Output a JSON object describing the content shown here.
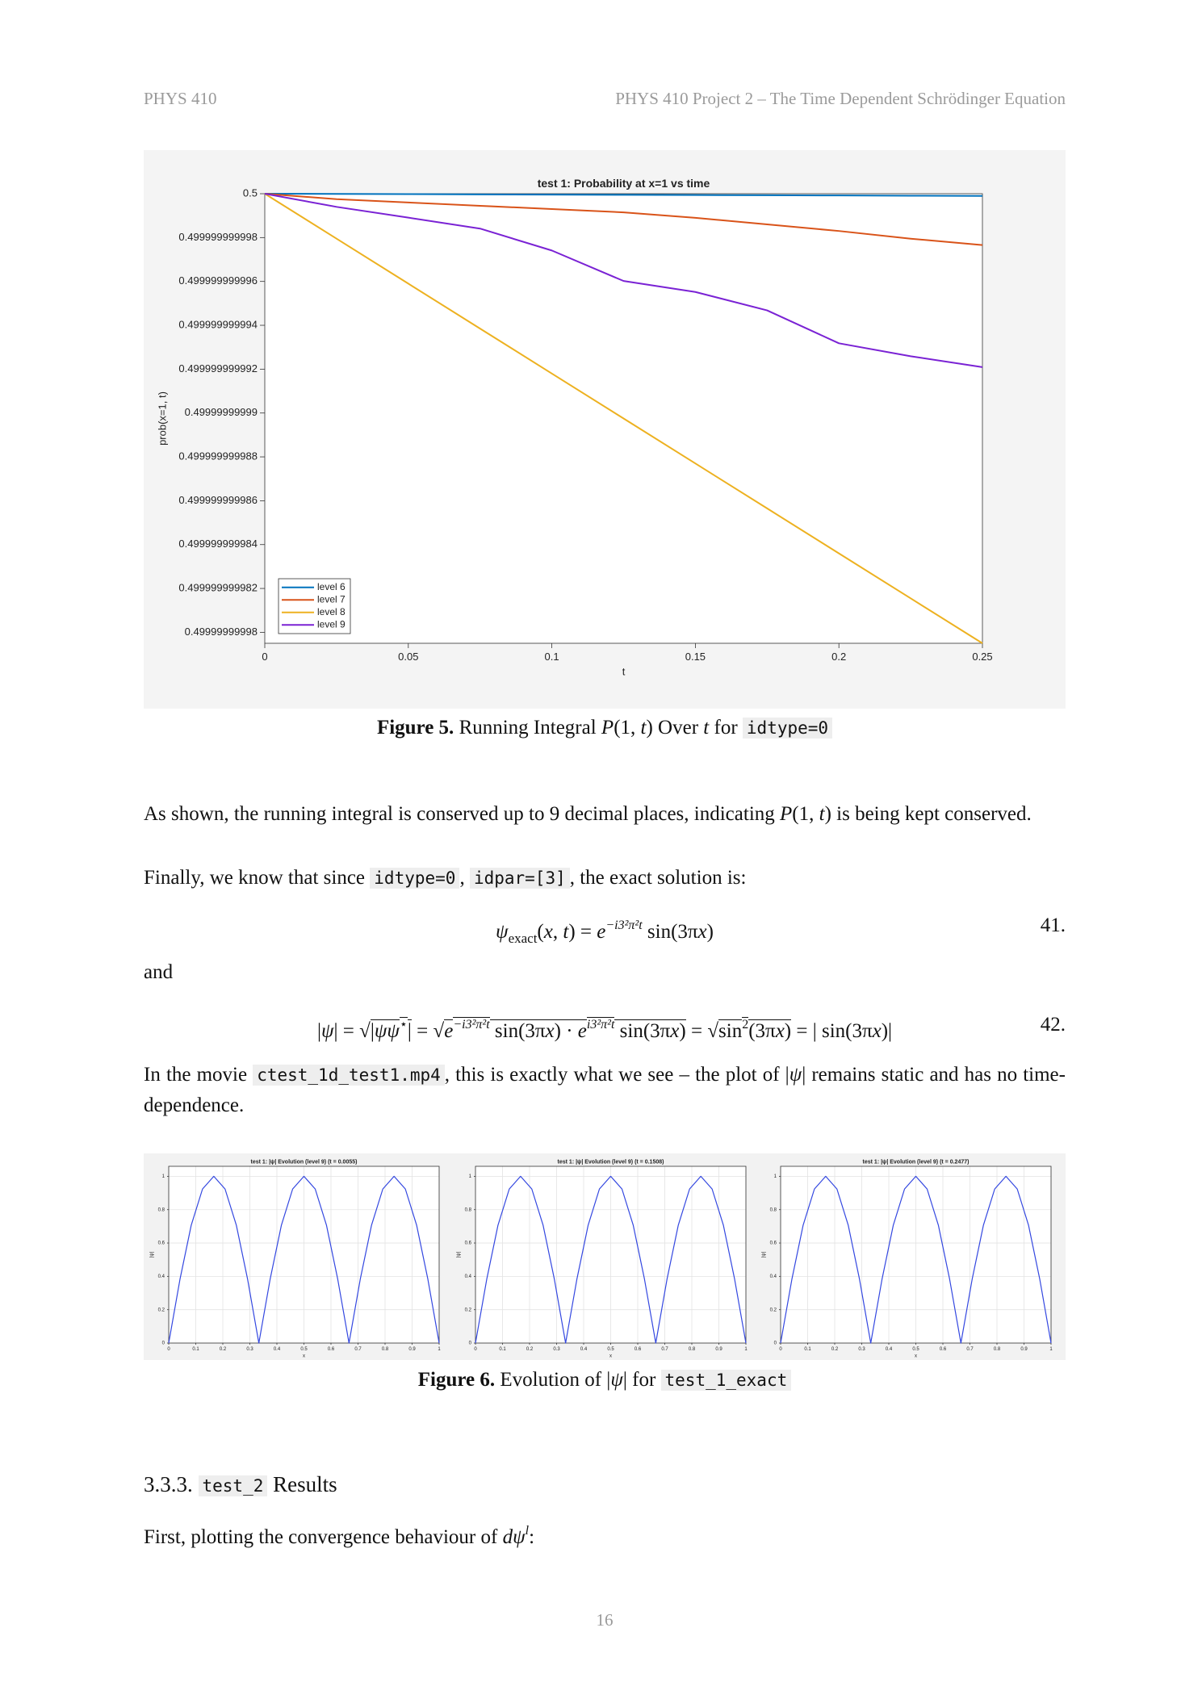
{
  "header": {
    "left": "PHYS 410",
    "right": "PHYS 410 Project 2 – The Time Dependent Schrödinger Equation"
  },
  "chart_data": [
    {
      "type": "line",
      "title": "test 1: Probability at x=1 vs time",
      "x_label": "t",
      "y_label": "prob(x=1, t)",
      "x": [
        0,
        0.025,
        0.05,
        0.075,
        0.1,
        0.125,
        0.15,
        0.175,
        0.2,
        0.225,
        0.25
      ],
      "series": [
        {
          "name": "level 6",
          "color": "#0072bd",
          "values": [
            0.5,
            0.49999999999999,
            0.49999999999998,
            0.49999999999997,
            0.49999999999996,
            0.49999999999995,
            0.49999999999994,
            0.49999999999993,
            0.49999999999992,
            0.49999999999991,
            0.4999999999999
          ]
        },
        {
          "name": "level 7",
          "color": "#d95319",
          "values": [
            0.5,
            0.49999999999975,
            0.4999999999996,
            0.49999999999945,
            0.4999999999993,
            0.49999999999915,
            0.4999999999989,
            0.4999999999986,
            0.4999999999983,
            0.49999999999795,
            0.49999999999766
          ]
        },
        {
          "name": "level 8",
          "color": "#edb120",
          "values": [
            0.5,
            0.49999999999795,
            0.4999999999959,
            0.49999999999385,
            0.4999999999918,
            0.49999999998975,
            0.4999999999877,
            0.49999999998565,
            0.4999999999836,
            0.49999999998155,
            0.4999999999795
          ]
        },
        {
          "name": "level 9",
          "color": "#7a22d4",
          "values": [
            0.5,
            0.4999999999994,
            0.49999999999891,
            0.49999999999841,
            0.49999999999741,
            0.49999999999602,
            0.49999999999552,
            0.49999999999468,
            0.49999999999318,
            0.49999999999259,
            0.49999999999209
          ]
        }
      ],
      "xlim": [
        0,
        0.25
      ],
      "xticks": [
        0,
        0.05,
        0.1,
        0.15,
        0.2,
        0.25
      ],
      "ylim": [
        0.4999999999795,
        0.5
      ],
      "yticks": [
        0.49999999998,
        0.499999999982,
        0.499999999984,
        0.499999999986,
        0.499999999988,
        0.49999999999,
        0.499999999992,
        0.499999999994,
        0.499999999996,
        0.499999999998,
        0.5
      ],
      "grid": false,
      "legend": "lower left"
    },
    {
      "type": "line",
      "title": "test 1: |ψ| Evolution (level 9) (t = 0.0055)",
      "x_label": "x",
      "y_label": "|ψ|",
      "color": "#3347e0",
      "x": [
        0,
        0.0417,
        0.0833,
        0.125,
        0.1667,
        0.2083,
        0.25,
        0.2917,
        0.3333,
        0.375,
        0.4167,
        0.4583,
        0.5,
        0.5417,
        0.5833,
        0.625,
        0.6667,
        0.7083,
        0.75,
        0.7917,
        0.8333,
        0.875,
        0.9167,
        0.9583,
        1
      ],
      "values": [
        0,
        0.3827,
        0.7071,
        0.9239,
        1,
        0.9239,
        0.7071,
        0.3827,
        0,
        0.3827,
        0.7071,
        0.9239,
        1,
        0.9239,
        0.7071,
        0.3827,
        0,
        0.3827,
        0.7071,
        0.9239,
        1,
        0.9239,
        0.7071,
        0.3827,
        0
      ],
      "xlim": [
        0,
        1
      ],
      "xticks": [
        0,
        0.1,
        0.2,
        0.3,
        0.4,
        0.5,
        0.6,
        0.7,
        0.8,
        0.9,
        1
      ],
      "ylim": [
        0,
        1.06
      ],
      "yticks": [
        0,
        0.2,
        0.4,
        0.6,
        0.8,
        1
      ],
      "grid": true
    },
    {
      "type": "line",
      "title": "test 1: |ψ| Evolution (level 9) (t = 0.1508)",
      "x_label": "x",
      "y_label": "|ψ|",
      "color": "#3347e0",
      "x": [
        0,
        0.0417,
        0.0833,
        0.125,
        0.1667,
        0.2083,
        0.25,
        0.2917,
        0.3333,
        0.375,
        0.4167,
        0.4583,
        0.5,
        0.5417,
        0.5833,
        0.625,
        0.6667,
        0.7083,
        0.75,
        0.7917,
        0.8333,
        0.875,
        0.9167,
        0.9583,
        1
      ],
      "values": [
        0,
        0.3827,
        0.7071,
        0.9239,
        1,
        0.9239,
        0.7071,
        0.3827,
        0,
        0.3827,
        0.7071,
        0.9239,
        1,
        0.9239,
        0.7071,
        0.3827,
        0,
        0.3827,
        0.7071,
        0.9239,
        1,
        0.9239,
        0.7071,
        0.3827,
        0
      ],
      "xlim": [
        0,
        1
      ],
      "xticks": [
        0,
        0.1,
        0.2,
        0.3,
        0.4,
        0.5,
        0.6,
        0.7,
        0.8,
        0.9,
        1
      ],
      "ylim": [
        0,
        1.06
      ],
      "yticks": [
        0,
        0.2,
        0.4,
        0.6,
        0.8,
        1
      ],
      "grid": true
    },
    {
      "type": "line",
      "title": "test 1: |ψ| Evolution (level 9) (t = 0.2477)",
      "x_label": "x",
      "y_label": "|ψ|",
      "color": "#3347e0",
      "x": [
        0,
        0.0417,
        0.0833,
        0.125,
        0.1667,
        0.2083,
        0.25,
        0.2917,
        0.3333,
        0.375,
        0.4167,
        0.4583,
        0.5,
        0.5417,
        0.5833,
        0.625,
        0.6667,
        0.7083,
        0.75,
        0.7917,
        0.8333,
        0.875,
        0.9167,
        0.9583,
        1
      ],
      "values": [
        0,
        0.3827,
        0.7071,
        0.9239,
        1,
        0.9239,
        0.7071,
        0.3827,
        0,
        0.3827,
        0.7071,
        0.9239,
        1,
        0.9239,
        0.7071,
        0.3827,
        0,
        0.3827,
        0.7071,
        0.9239,
        1,
        0.9239,
        0.7071,
        0.3827,
        0
      ],
      "xlim": [
        0,
        1
      ],
      "xticks": [
        0,
        0.1,
        0.2,
        0.3,
        0.4,
        0.5,
        0.6,
        0.7,
        0.8,
        0.9,
        1
      ],
      "ylim": [
        0,
        1.06
      ],
      "yticks": [
        0,
        0.2,
        0.4,
        0.6,
        0.8,
        1
      ],
      "grid": true
    }
  ],
  "figure5_caption": [
    {
      "text": "Figure 5.",
      "style": "b"
    },
    {
      "text": " Running Integral "
    },
    {
      "text": "P",
      "style": "i"
    },
    {
      "text": "(1, "
    },
    {
      "text": "t",
      "style": "i"
    },
    {
      "text": ") Over "
    },
    {
      "text": "t",
      "style": "i"
    },
    {
      "text": " for "
    },
    {
      "text": "idtype=0",
      "style": "code"
    }
  ],
  "paragraph1": [
    {
      "text": "As shown, the running integral is conserved up to 9 decimal places, indicating "
    },
    {
      "text": "P",
      "style": "i"
    },
    {
      "text": "(1, "
    },
    {
      "text": "t",
      "style": "i"
    },
    {
      "text": ") is being kept conserved."
    }
  ],
  "paragraph2": [
    {
      "text": "Finally, we know that since "
    },
    {
      "text": "idtype=0",
      "style": "code"
    },
    {
      "text": ", "
    },
    {
      "text": "idpar=[3]",
      "style": "code"
    },
    {
      "text": ", the exact solution is:"
    }
  ],
  "equation41": {
    "runs": [
      {
        "text": "ψ",
        "style": "i"
      },
      {
        "text": "exact",
        "style": "sub"
      },
      {
        "text": "("
      },
      {
        "text": "x",
        "style": "i"
      },
      {
        "text": ", "
      },
      {
        "text": "t",
        "style": "i"
      },
      {
        "text": ") = "
      },
      {
        "text": "e",
        "style": "i"
      },
      {
        "text": "−i3²π²t",
        "style": "sup i"
      },
      {
        "text": " sin(3π"
      },
      {
        "text": "x",
        "style": "i"
      },
      {
        "text": ")"
      }
    ],
    "number": "41."
  },
  "paragraph_and": [
    {
      "text": "and"
    }
  ],
  "equation42": {
    "runs": [
      {
        "text": "|"
      },
      {
        "text": "ψ",
        "style": "i"
      },
      {
        "text": "| = √"
      },
      {
        "text": "|",
        "style": "o"
      },
      {
        "text": "ψψ",
        "style": "i o"
      },
      {
        "text": "⋆",
        "style": "sup o"
      },
      {
        "text": "|",
        "style": "o"
      },
      {
        "text": " = √"
      },
      {
        "text": "e",
        "style": "i o"
      },
      {
        "text": "−i3²π²t",
        "style": "sup i o"
      },
      {
        "text": " sin(3π",
        "style": "o"
      },
      {
        "text": "x",
        "style": "i o"
      },
      {
        "text": ") · ",
        "style": "o"
      },
      {
        "text": "e",
        "style": "i o"
      },
      {
        "text": "i3²π²t",
        "style": "sup i o"
      },
      {
        "text": " sin(3π",
        "style": "o"
      },
      {
        "text": "x",
        "style": "i o"
      },
      {
        "text": ")",
        "style": "o"
      },
      {
        "text": " = √"
      },
      {
        "text": "sin",
        "style": "o"
      },
      {
        "text": "2",
        "style": "sup o"
      },
      {
        "text": "(3π",
        "style": "o"
      },
      {
        "text": "x",
        "style": "i o"
      },
      {
        "text": ")",
        "style": "o"
      },
      {
        "text": " = | sin(3π"
      },
      {
        "text": "x",
        "style": "i"
      },
      {
        "text": ")|"
      }
    ],
    "number": "42."
  },
  "paragraph3": [
    {
      "text": "In the movie "
    },
    {
      "text": "ctest_1d_test1.mp4",
      "style": "code"
    },
    {
      "text": ", this is exactly what we see – the plot of |"
    },
    {
      "text": "ψ",
      "style": "i"
    },
    {
      "text": "| remains static and has no time-dependence."
    }
  ],
  "figure6_caption": [
    {
      "text": "Figure 6.",
      "style": "b"
    },
    {
      "text": " Evolution of |"
    },
    {
      "text": "ψ",
      "style": "i"
    },
    {
      "text": "| for "
    },
    {
      "text": "test_1_exact",
      "style": "code"
    }
  ],
  "heading": [
    {
      "text": "3.3.3. "
    },
    {
      "text": "test_2",
      "style": "code"
    },
    {
      "text": " Results"
    }
  ],
  "paragraph4": [
    {
      "text": "First, plotting the convergence behaviour of "
    },
    {
      "text": "dψ",
      "style": "i"
    },
    {
      "text": "l",
      "style": "sup i"
    },
    {
      "text": ":"
    }
  ],
  "page_number": "16"
}
